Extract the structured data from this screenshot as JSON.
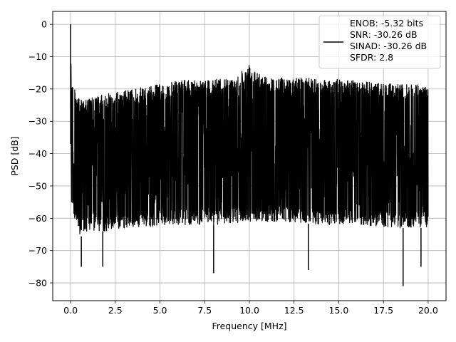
{
  "chart_data": {
    "type": "line",
    "title": "",
    "xlabel": "Frequency [MHz]",
    "ylabel": "PSD [dB]",
    "xlim": [
      -1.0,
      21.0
    ],
    "ylim": [
      -85.5,
      4.0
    ],
    "xticks": [
      0.0,
      2.5,
      5.0,
      7.5,
      10.0,
      12.5,
      15.0,
      17.5,
      20.0
    ],
    "xtick_labels": [
      "0.0",
      "2.5",
      "5.0",
      "7.5",
      "10.0",
      "12.5",
      "15.0",
      "17.5",
      "20.0"
    ],
    "yticks": [
      0,
      -10,
      -20,
      -30,
      -40,
      -50,
      -60,
      -70,
      -80
    ],
    "ytick_labels": [
      "0",
      "−10",
      "−20",
      "−30",
      "−40",
      "−50",
      "−60",
      "−70",
      "−80"
    ],
    "grid": true,
    "legend_position": "top-right",
    "legend_lines": [
      "ENOB: -5.32 bits",
      "SNR: -30.26 dB",
      "SINAD: -30.26 dB",
      "SFDR: 2.8"
    ],
    "series": [
      {
        "color": "#000000",
        "x": [
          0.0,
          0.05,
          0.5,
          1.0,
          2.0,
          3.0,
          4.0,
          5.0,
          6.0,
          7.0,
          8.0,
          9.0,
          10.0,
          11.0,
          12.0,
          13.0,
          14.0,
          15.0,
          16.0,
          17.0,
          18.0,
          19.0,
          20.0
        ],
        "upper_envelope": [
          0.0,
          -17.0,
          -23.5,
          -23.0,
          -21.5,
          -20.5,
          -19.5,
          -18.5,
          -17.5,
          -17.0,
          -17.0,
          -17.0,
          -12.0,
          -16.5,
          -16.5,
          -16.5,
          -17.0,
          -17.0,
          -17.5,
          -18.0,
          -18.5,
          -18.5,
          -19.0
        ],
        "lower_envelope": [
          -37.0,
          -56.0,
          -66.0,
          -64.0,
          -64.0,
          -63.0,
          -63.0,
          -62.0,
          -62.0,
          -62.0,
          -62.0,
          -61.5,
          -61.0,
          -61.0,
          -61.0,
          -61.5,
          -62.0,
          -62.0,
          -62.0,
          -62.5,
          -63.0,
          -63.0,
          -63.0
        ],
        "deep_dips": [
          {
            "x": 0.6,
            "y": -75.0
          },
          {
            "x": 1.8,
            "y": -75.0
          },
          {
            "x": 8.0,
            "y": -77.0
          },
          {
            "x": 13.3,
            "y": -76.0
          },
          {
            "x": 18.6,
            "y": -81.0
          },
          {
            "x": 19.6,
            "y": -75.0
          }
        ]
      }
    ]
  }
}
